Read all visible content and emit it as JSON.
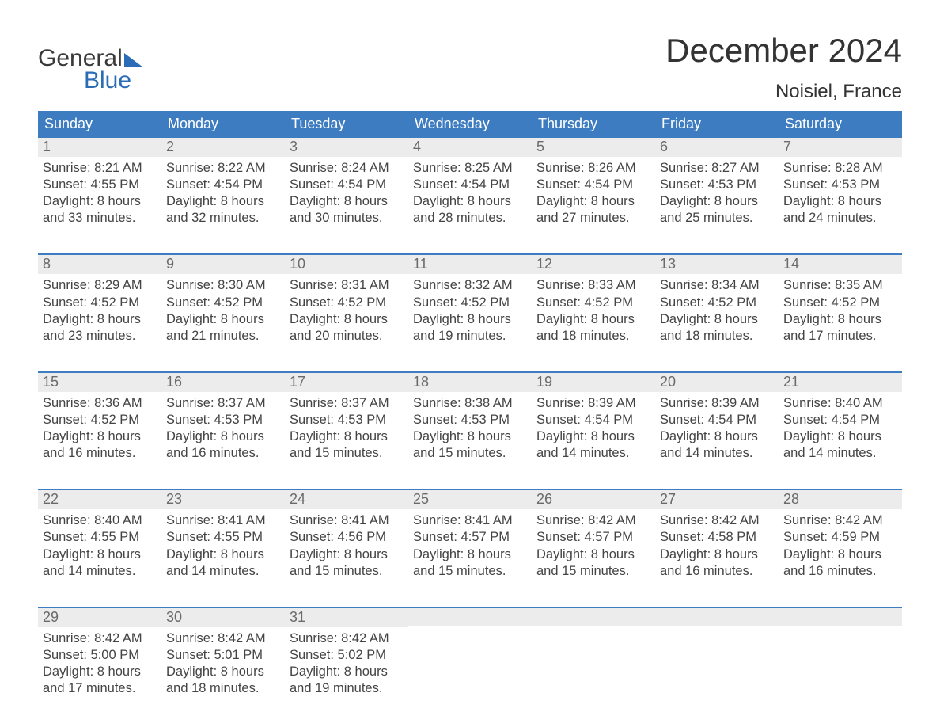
{
  "brand": {
    "line1": "General",
    "line2": "Blue"
  },
  "title": "December 2024",
  "location": "Noisiel, France",
  "colors": {
    "header_bg": "#3d7cc0",
    "header_fg": "#ffffff",
    "week_border": "#3d7cc0",
    "daynum_bg": "#ececec",
    "daynum_fg": "#6a6a6a",
    "body_fg": "#444444",
    "page_bg": "#ffffff",
    "brand_blue": "#2a6db6",
    "brand_dark": "#3a3a3a"
  },
  "typography": {
    "title_fontsize": 42,
    "location_fontsize": 24,
    "weekday_fontsize": 18,
    "daynum_fontsize": 18,
    "body_fontsize": 16.5,
    "logo_fontsize": 30
  },
  "weekdays": [
    "Sunday",
    "Monday",
    "Tuesday",
    "Wednesday",
    "Thursday",
    "Friday",
    "Saturday"
  ],
  "weeks": [
    [
      {
        "num": "1",
        "sunrise": "Sunrise: 8:21 AM",
        "sunset": "Sunset: 4:55 PM",
        "day1": "Daylight: 8 hours",
        "day2": "and 33 minutes."
      },
      {
        "num": "2",
        "sunrise": "Sunrise: 8:22 AM",
        "sunset": "Sunset: 4:54 PM",
        "day1": "Daylight: 8 hours",
        "day2": "and 32 minutes."
      },
      {
        "num": "3",
        "sunrise": "Sunrise: 8:24 AM",
        "sunset": "Sunset: 4:54 PM",
        "day1": "Daylight: 8 hours",
        "day2": "and 30 minutes."
      },
      {
        "num": "4",
        "sunrise": "Sunrise: 8:25 AM",
        "sunset": "Sunset: 4:54 PM",
        "day1": "Daylight: 8 hours",
        "day2": "and 28 minutes."
      },
      {
        "num": "5",
        "sunrise": "Sunrise: 8:26 AM",
        "sunset": "Sunset: 4:54 PM",
        "day1": "Daylight: 8 hours",
        "day2": "and 27 minutes."
      },
      {
        "num": "6",
        "sunrise": "Sunrise: 8:27 AM",
        "sunset": "Sunset: 4:53 PM",
        "day1": "Daylight: 8 hours",
        "day2": "and 25 minutes."
      },
      {
        "num": "7",
        "sunrise": "Sunrise: 8:28 AM",
        "sunset": "Sunset: 4:53 PM",
        "day1": "Daylight: 8 hours",
        "day2": "and 24 minutes."
      }
    ],
    [
      {
        "num": "8",
        "sunrise": "Sunrise: 8:29 AM",
        "sunset": "Sunset: 4:52 PM",
        "day1": "Daylight: 8 hours",
        "day2": "and 23 minutes."
      },
      {
        "num": "9",
        "sunrise": "Sunrise: 8:30 AM",
        "sunset": "Sunset: 4:52 PM",
        "day1": "Daylight: 8 hours",
        "day2": "and 21 minutes."
      },
      {
        "num": "10",
        "sunrise": "Sunrise: 8:31 AM",
        "sunset": "Sunset: 4:52 PM",
        "day1": "Daylight: 8 hours",
        "day2": "and 20 minutes."
      },
      {
        "num": "11",
        "sunrise": "Sunrise: 8:32 AM",
        "sunset": "Sunset: 4:52 PM",
        "day1": "Daylight: 8 hours",
        "day2": "and 19 minutes."
      },
      {
        "num": "12",
        "sunrise": "Sunrise: 8:33 AM",
        "sunset": "Sunset: 4:52 PM",
        "day1": "Daylight: 8 hours",
        "day2": "and 18 minutes."
      },
      {
        "num": "13",
        "sunrise": "Sunrise: 8:34 AM",
        "sunset": "Sunset: 4:52 PM",
        "day1": "Daylight: 8 hours",
        "day2": "and 18 minutes."
      },
      {
        "num": "14",
        "sunrise": "Sunrise: 8:35 AM",
        "sunset": "Sunset: 4:52 PM",
        "day1": "Daylight: 8 hours",
        "day2": "and 17 minutes."
      }
    ],
    [
      {
        "num": "15",
        "sunrise": "Sunrise: 8:36 AM",
        "sunset": "Sunset: 4:52 PM",
        "day1": "Daylight: 8 hours",
        "day2": "and 16 minutes."
      },
      {
        "num": "16",
        "sunrise": "Sunrise: 8:37 AM",
        "sunset": "Sunset: 4:53 PM",
        "day1": "Daylight: 8 hours",
        "day2": "and 16 minutes."
      },
      {
        "num": "17",
        "sunrise": "Sunrise: 8:37 AM",
        "sunset": "Sunset: 4:53 PM",
        "day1": "Daylight: 8 hours",
        "day2": "and 15 minutes."
      },
      {
        "num": "18",
        "sunrise": "Sunrise: 8:38 AM",
        "sunset": "Sunset: 4:53 PM",
        "day1": "Daylight: 8 hours",
        "day2": "and 15 minutes."
      },
      {
        "num": "19",
        "sunrise": "Sunrise: 8:39 AM",
        "sunset": "Sunset: 4:54 PM",
        "day1": "Daylight: 8 hours",
        "day2": "and 14 minutes."
      },
      {
        "num": "20",
        "sunrise": "Sunrise: 8:39 AM",
        "sunset": "Sunset: 4:54 PM",
        "day1": "Daylight: 8 hours",
        "day2": "and 14 minutes."
      },
      {
        "num": "21",
        "sunrise": "Sunrise: 8:40 AM",
        "sunset": "Sunset: 4:54 PM",
        "day1": "Daylight: 8 hours",
        "day2": "and 14 minutes."
      }
    ],
    [
      {
        "num": "22",
        "sunrise": "Sunrise: 8:40 AM",
        "sunset": "Sunset: 4:55 PM",
        "day1": "Daylight: 8 hours",
        "day2": "and 14 minutes."
      },
      {
        "num": "23",
        "sunrise": "Sunrise: 8:41 AM",
        "sunset": "Sunset: 4:55 PM",
        "day1": "Daylight: 8 hours",
        "day2": "and 14 minutes."
      },
      {
        "num": "24",
        "sunrise": "Sunrise: 8:41 AM",
        "sunset": "Sunset: 4:56 PM",
        "day1": "Daylight: 8 hours",
        "day2": "and 15 minutes."
      },
      {
        "num": "25",
        "sunrise": "Sunrise: 8:41 AM",
        "sunset": "Sunset: 4:57 PM",
        "day1": "Daylight: 8 hours",
        "day2": "and 15 minutes."
      },
      {
        "num": "26",
        "sunrise": "Sunrise: 8:42 AM",
        "sunset": "Sunset: 4:57 PM",
        "day1": "Daylight: 8 hours",
        "day2": "and 15 minutes."
      },
      {
        "num": "27",
        "sunrise": "Sunrise: 8:42 AM",
        "sunset": "Sunset: 4:58 PM",
        "day1": "Daylight: 8 hours",
        "day2": "and 16 minutes."
      },
      {
        "num": "28",
        "sunrise": "Sunrise: 8:42 AM",
        "sunset": "Sunset: 4:59 PM",
        "day1": "Daylight: 8 hours",
        "day2": "and 16 minutes."
      }
    ],
    [
      {
        "num": "29",
        "sunrise": "Sunrise: 8:42 AM",
        "sunset": "Sunset: 5:00 PM",
        "day1": "Daylight: 8 hours",
        "day2": "and 17 minutes."
      },
      {
        "num": "30",
        "sunrise": "Sunrise: 8:42 AM",
        "sunset": "Sunset: 5:01 PM",
        "day1": "Daylight: 8 hours",
        "day2": "and 18 minutes."
      },
      {
        "num": "31",
        "sunrise": "Sunrise: 8:42 AM",
        "sunset": "Sunset: 5:02 PM",
        "day1": "Daylight: 8 hours",
        "day2": "and 19 minutes."
      },
      {
        "empty": true
      },
      {
        "empty": true
      },
      {
        "empty": true
      },
      {
        "empty": true
      }
    ]
  ]
}
